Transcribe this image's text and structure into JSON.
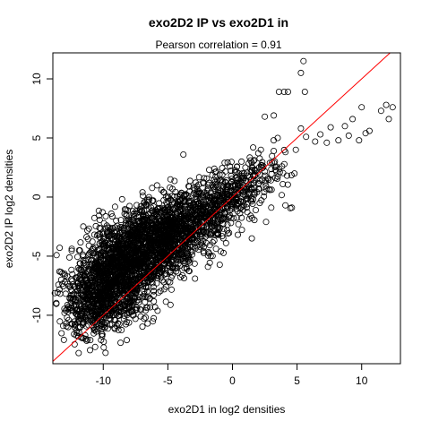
{
  "chart_data": {
    "type": "scatter",
    "title": "exo2D2 IP vs exo2D1 in",
    "subtitle": "Pearson correlation =  0.91",
    "xlabel": "exo2D1 in log2 densities",
    "ylabel": "exo2D2 IP log2 densities",
    "xlim": [
      -13.9,
      13.0
    ],
    "ylim": [
      -14.1,
      12.2
    ],
    "xticks": [
      -10,
      -5,
      0,
      5,
      10
    ],
    "yticks": [
      -10,
      -5,
      0,
      5,
      10
    ],
    "grid": false,
    "legend": "none",
    "colors": {
      "points": "#000000",
      "identity_line": "#ff0000"
    },
    "reference_line": {
      "kind": "identity",
      "slope": 1,
      "intercept": 0
    },
    "points": [
      [
        9.3,
        6.6
      ],
      [
        10.0,
        7.6
      ],
      [
        11.5,
        7.3
      ],
      [
        12.4,
        7.6
      ],
      [
        11.9,
        7.8
      ],
      [
        12.1,
        6.6
      ],
      [
        10.3,
        5.4
      ],
      [
        10.6,
        5.6
      ],
      [
        9.8,
        4.8
      ],
      [
        9.0,
        5.2
      ],
      [
        8.7,
        6.0
      ],
      [
        8.2,
        4.8
      ],
      [
        7.3,
        4.6
      ],
      [
        6.4,
        4.7
      ],
      [
        6.8,
        5.3
      ],
      [
        7.6,
        5.9
      ],
      [
        5.7,
        5.1
      ],
      [
        5.3,
        5.8
      ],
      [
        4.9,
        4.0
      ],
      [
        4.1,
        3.8
      ],
      [
        3.2,
        3.9
      ],
      [
        3.5,
        5.0
      ],
      [
        2.5,
        6.8
      ],
      [
        3.2,
        6.9
      ],
      [
        4.3,
        8.9
      ],
      [
        5.3,
        10.5
      ],
      [
        5.5,
        11.5
      ],
      [
        5.6,
        8.9
      ],
      [
        3.6,
        8.9
      ],
      [
        4.0,
        8.9
      ],
      [
        2.2,
        4.0
      ],
      [
        1.6,
        4.2
      ],
      [
        1.4,
        3.1
      ],
      [
        0.9,
        1.6
      ],
      [
        0.4,
        0.9
      ],
      [
        -0.1,
        0.6
      ],
      [
        1.8,
        -1.1
      ],
      [
        3.0,
        -0.9
      ],
      [
        4.1,
        -0.7
      ],
      [
        4.6,
        -0.9
      ],
      [
        2.6,
        -2.1
      ],
      [
        1.5,
        -3.5
      ],
      [
        -0.5,
        -3.9
      ],
      [
        -1.1,
        -3.2
      ],
      [
        -1.4,
        -2.4
      ],
      [
        -2.1,
        -0.9
      ],
      [
        -2.8,
        -2.6
      ],
      [
        -3.3,
        -4.2
      ],
      [
        -3.7,
        -5.6
      ],
      [
        -4.2,
        -6.4
      ],
      [
        -3.8,
        3.6
      ],
      [
        -4.8,
        1.5
      ],
      [
        -5.5,
        0.6
      ],
      [
        -6.2,
        -0.3
      ],
      [
        -7.1,
        -0.8
      ],
      [
        -8.1,
        -2.3
      ],
      [
        -8.9,
        -3.3
      ],
      [
        -10.0,
        -4.1
      ],
      [
        -10.9,
        -5.7
      ],
      [
        -11.5,
        -6.7
      ],
      [
        -12.2,
        -7.6
      ],
      [
        -12.6,
        -8.6
      ],
      [
        -13.1,
        -10.9
      ],
      [
        -12.9,
        -9.6
      ],
      [
        -12.1,
        -11.7
      ],
      [
        -11.4,
        -11.7
      ],
      [
        -11.0,
        -12.1
      ],
      [
        -10.2,
        -10.9
      ],
      [
        -9.6,
        -9.9
      ],
      [
        -8.7,
        -9.3
      ],
      [
        -8.2,
        -8.6
      ],
      [
        -7.5,
        -8.1
      ],
      [
        -6.8,
        -7.1
      ],
      [
        -5.9,
        -6.3
      ],
      [
        -5.1,
        -6.5
      ],
      [
        -2.9,
        -6.9
      ],
      [
        -1.9,
        -5.9
      ],
      [
        -0.9,
        -4.6
      ],
      [
        -12.0,
        -8.2
      ],
      [
        -11.2,
        -9.0
      ],
      [
        -10.8,
        -10.4
      ],
      [
        -10.0,
        -8.9
      ],
      [
        -9.3,
        -7.6
      ],
      [
        -8.8,
        -6.4
      ],
      [
        -8.0,
        -5.1
      ],
      [
        -7.2,
        -4.3
      ],
      [
        -6.4,
        -3.6
      ],
      [
        -5.6,
        -2.8
      ],
      [
        -4.9,
        -1.9
      ],
      [
        -4.1,
        -1.1
      ],
      [
        -3.4,
        -0.4
      ],
      [
        -2.6,
        0.5
      ],
      [
        -1.8,
        1.2
      ],
      [
        -1.0,
        1.9
      ],
      [
        -0.2,
        2.6
      ],
      [
        0.7,
        3.0
      ],
      [
        -12.4,
        -7.1
      ],
      [
        -11.7,
        -6.2
      ],
      [
        -10.6,
        -5.0
      ],
      [
        -9.7,
        -3.1
      ],
      [
        -9.0,
        -2.0
      ],
      [
        -7.6,
        -1.4
      ],
      [
        -6.7,
        -0.6
      ],
      [
        -5.8,
        -1.0
      ],
      [
        -4.5,
        -0.5
      ],
      [
        -3.6,
        0.2
      ],
      [
        -2.2,
        1.6
      ],
      [
        -1.4,
        2.4
      ],
      [
        -0.6,
        2.9
      ],
      [
        0.2,
        2.1
      ],
      [
        1.0,
        2.5
      ],
      [
        2.0,
        1.1
      ],
      [
        2.9,
        0.6
      ],
      [
        3.9,
        1.1
      ],
      [
        4.8,
        2.0
      ],
      [
        -13.0,
        -9.8
      ],
      [
        -12.8,
        -10.2
      ],
      [
        -11.9,
        -10.5
      ],
      [
        -10.3,
        -11.1
      ],
      [
        -9.2,
        -10.0
      ],
      [
        -8.4,
        -9.6
      ],
      [
        -7.9,
        -8.9
      ],
      [
        -6.9,
        -8.4
      ],
      [
        -6.1,
        -7.6
      ],
      [
        -5.3,
        -7.2
      ],
      [
        -4.6,
        -5.3
      ],
      [
        -3.9,
        -4.9
      ],
      [
        -3.1,
        -3.6
      ],
      [
        -2.4,
        -2.9
      ],
      [
        -1.7,
        -2.2
      ],
      [
        -0.8,
        -1.4
      ],
      [
        0.1,
        -1.8
      ],
      [
        0.9,
        -0.7
      ],
      [
        1.7,
        0.2
      ],
      [
        2.4,
        2.6
      ],
      [
        3.4,
        2.2
      ]
    ],
    "dense_regions": [
      {
        "cx": -9.5,
        "cy": -7.6,
        "sx": 1.6,
        "sy": 1.7,
        "n": 700
      },
      {
        "cx": -8.0,
        "cy": -5.2,
        "sx": 1.6,
        "sy": 1.6,
        "n": 750
      },
      {
        "cx": -6.0,
        "cy": -3.7,
        "sx": 1.6,
        "sy": 1.6,
        "n": 650
      },
      {
        "cx": -4.0,
        "cy": -2.6,
        "sx": 1.4,
        "sy": 1.4,
        "n": 420
      },
      {
        "cx": -2.0,
        "cy": -1.0,
        "sx": 1.3,
        "sy": 1.2,
        "n": 280
      },
      {
        "cx": 0.0,
        "cy": 0.4,
        "sx": 1.2,
        "sy": 1.0,
        "n": 180
      },
      {
        "cx": 1.8,
        "cy": 1.8,
        "sx": 1.1,
        "sy": 1.0,
        "n": 90
      },
      {
        "cx": -11.0,
        "cy": -9.3,
        "sx": 1.1,
        "sy": 1.4,
        "n": 250
      }
    ]
  }
}
